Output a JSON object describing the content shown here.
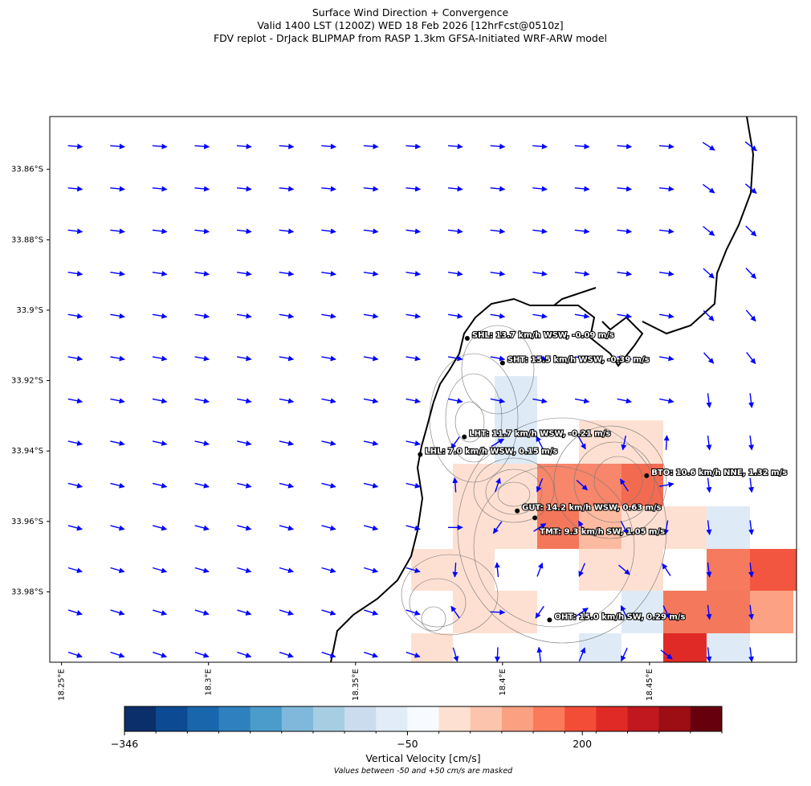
{
  "header": {
    "lines": [
      "Surface Wind Direction + Convergence",
      "Valid 1400 LST (1200Z) WED 18 Feb 2026 [12hrFcst@0510z]",
      "FDV replot - DrJack BLIPMAP from RASP 1.3km GFSA-Initiated WRF-ARW model"
    ]
  },
  "map": {
    "lon_range": [
      18.246,
      18.5
    ],
    "lat_range": [
      -34.0,
      -33.845
    ],
    "lat_ticks": [
      {
        "value": -33.86,
        "label": "33.86°S"
      },
      {
        "value": -33.88,
        "label": "33.88°S"
      },
      {
        "value": -33.9,
        "label": "33.9°S"
      },
      {
        "value": -33.92,
        "label": "33.92°S"
      },
      {
        "value": -33.94,
        "label": "33.94°S"
      },
      {
        "value": -33.96,
        "label": "33.96°S"
      },
      {
        "value": -33.98,
        "label": "33.98°S"
      }
    ],
    "lon_ticks": [
      {
        "value": 18.25,
        "label": "18.25°E"
      },
      {
        "value": 18.3,
        "label": "18.3°E"
      },
      {
        "value": 18.35,
        "label": "18.35°E"
      },
      {
        "value": 18.4,
        "label": "18.4°E"
      },
      {
        "value": 18.45,
        "label": "18.45°E"
      }
    ],
    "stations": [
      {
        "label": "SHL: 13.7 km/h WSW, -0.09 m/s",
        "lon": 18.388,
        "lat": -33.908
      },
      {
        "label": "SHT: 15.5 km/h WSW, -0.39 m/s",
        "lon": 18.4,
        "lat": -33.915
      },
      {
        "label": "LHT: 11.7 km/h WSW, -0.21 m/s",
        "lon": 18.387,
        "lat": -33.936
      },
      {
        "label": "LHL: 7.0 km/h WSW, 0.15 m/s",
        "lon": 18.372,
        "lat": -33.941
      },
      {
        "label": "BTO: 10.6 km/h NNE, 1.32 m/s",
        "lon": 18.449,
        "lat": -33.947
      },
      {
        "label": "GUT: 14.2 km/h WSW, 0.63 m/s",
        "lon": 18.405,
        "lat": -33.957
      },
      {
        "label": "TMT: 9.3 km/h SW, 1.05 m/s",
        "lon": 18.411,
        "lat": -33.959
      },
      {
        "label": "OHT: 15.0 km/h SW, 0.29 m/s",
        "lon": 18.416,
        "lat": -33.988
      }
    ]
  },
  "colorbar": {
    "levels": [
      -346,
      -313.1,
      -280.2,
      -247.3,
      -214.4,
      -181.6,
      -148.7,
      -115.8,
      -82.9,
      -50,
      50,
      82.9,
      115.8,
      148.7,
      181.6,
      214.4,
      247.3,
      280.2,
      313.1,
      346
    ],
    "colors": [
      "#0b2f6b",
      "#0c4b93",
      "#1966ad",
      "#2f80bf",
      "#4b9bcb",
      "#7fb8da",
      "#a7cde3",
      "#cbdcee",
      "#e1ecf8",
      "#f7fbff",
      "#fee0d2",
      "#fdc4ad",
      "#fca082",
      "#fa7a5b",
      "#f34d38",
      "#e02a26",
      "#c0181e",
      "#9c0d14",
      "#67000d"
    ],
    "ticks": [
      {
        "value": -346,
        "label": "−346"
      },
      {
        "value": -50,
        "label": "−50"
      },
      {
        "value": 200,
        "label": "200"
      }
    ],
    "label": "Vertical Velocity [cm/s]",
    "note": "Values between -50 and +50 cm/s are masked"
  }
}
